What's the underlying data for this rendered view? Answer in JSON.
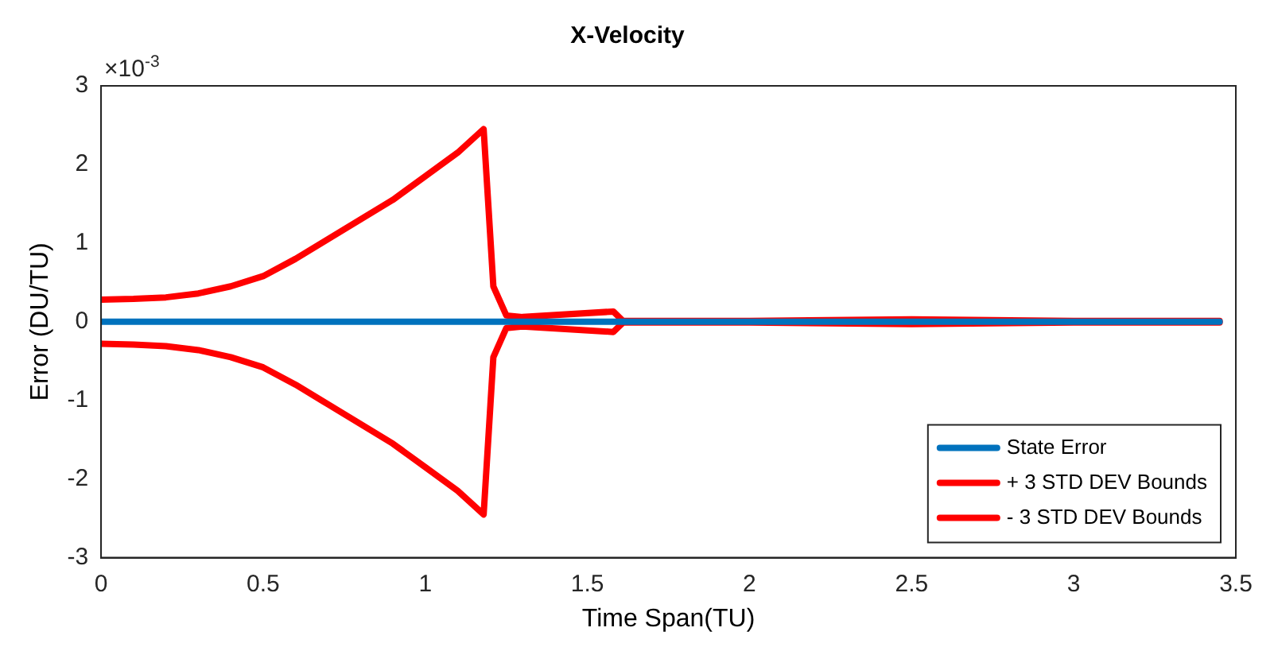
{
  "chart_data": {
    "type": "line",
    "title": "X-Velocity",
    "xlabel": "Time Span(TU)",
    "ylabel": "Error (DU/TU)",
    "annotations": [
      "×10$^{-3}$"
    ],
    "x": [
      0,
      0.1,
      0.2,
      0.3,
      0.4,
      0.5,
      0.6,
      0.7,
      0.8,
      0.9,
      1.0,
      1.1,
      1.18,
      1.21,
      1.25,
      1.3,
      1.58,
      1.61,
      2.0,
      2.5,
      3.0,
      3.45
    ],
    "series": [
      {
        "name": "State Error",
        "color": "#0072bd",
        "values": [
          0,
          0,
          0,
          0,
          0,
          0,
          0,
          0,
          0,
          0,
          0,
          0,
          0,
          0,
          0,
          0,
          0,
          0,
          0,
          0,
          0,
          0
        ]
      },
      {
        "name": "+ 3 STD DEV Bounds",
        "color": "#ff0000",
        "values": [
          0.28,
          0.29,
          0.31,
          0.36,
          0.45,
          0.58,
          0.8,
          1.05,
          1.3,
          1.55,
          1.85,
          2.15,
          2.45,
          0.45,
          0.08,
          0.06,
          0.13,
          0.01,
          0.01,
          0.03,
          0.01,
          0.01
        ]
      },
      {
        "name": "- 3 STD DEV Bounds",
        "color": "#ff0000",
        "values": [
          -0.28,
          -0.29,
          -0.31,
          -0.36,
          -0.45,
          -0.58,
          -0.8,
          -1.05,
          -1.3,
          -1.55,
          -1.85,
          -2.15,
          -2.45,
          -0.45,
          -0.08,
          -0.06,
          -0.13,
          -0.01,
          -0.01,
          -0.03,
          -0.01,
          -0.01
        ]
      }
    ],
    "xlim": [
      0,
      3.5
    ],
    "xticks": [
      0,
      0.5,
      1,
      1.5,
      2,
      2.5,
      3,
      3.5
    ],
    "ylim": [
      -3,
      3
    ],
    "yticks": [
      -3,
      -2,
      -1,
      0,
      1,
      2,
      3
    ],
    "grid": false,
    "legend": "bottom right",
    "marker": "none",
    "line_style": "solid"
  }
}
